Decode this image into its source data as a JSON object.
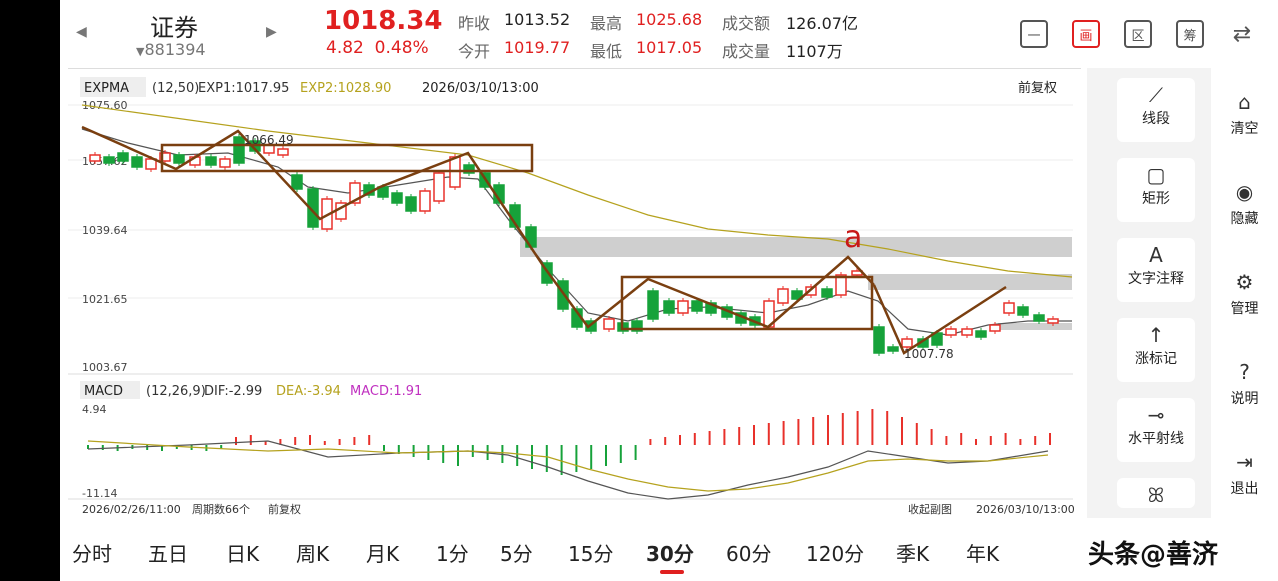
{
  "header": {
    "name": "证券",
    "code": "881394",
    "price": "1018.34",
    "change": "4.82",
    "change_pct": "0.48%",
    "quotes": [
      {
        "label": "昨收",
        "value": "1013.52",
        "red": false
      },
      {
        "label": "最高",
        "value": "1025.68",
        "red": true
      },
      {
        "label": "成交额",
        "value": "126.07亿",
        "red": false
      },
      {
        "label": "今开",
        "value": "1019.77",
        "red": true
      },
      {
        "label": "最低",
        "value": "1017.05",
        "red": true
      },
      {
        "label": "成交量",
        "value": "1107万",
        "red": false
      }
    ],
    "toolbar": [
      "一",
      "画",
      "区",
      "筹"
    ]
  },
  "chart": {
    "indicator": "EXPMA",
    "params": "(12,50)",
    "exp1": "EXP1:1017.95",
    "exp2": "EXP2:1028.90",
    "datetime": "2026/03/10/13:00",
    "adjust": "前复权",
    "y_labels": [
      "1075.60",
      "1057.62",
      "1039.64",
      "1021.65",
      "1003.67"
    ],
    "high_mark": "1066.49",
    "low_mark": "1007.78",
    "annotation": "a",
    "macd_name": "MACD",
    "macd_params": "(12,26,9)",
    "dif": "DIF:-2.99",
    "dea": "DEA:-3.94",
    "macd": "MACD:1.91",
    "macd_top": "4.94",
    "macd_bottom": "-11.14",
    "start_date": "2026/02/26/11:00",
    "period_count": "周期数66个",
    "footer_adjust": "前复权",
    "collapse": "收起副图",
    "end_date": "2026/03/10/13:00",
    "colors": {
      "up": "#e8302a",
      "down": "#16a23a",
      "exp1": "#555555",
      "exp2": "#b5a21e",
      "drawing": "#7a3f10"
    }
  },
  "chart_data": {
    "type": "candlestick",
    "y_range": [
      1003.67,
      1075.6
    ],
    "macd_range": [
      -11.14,
      4.94
    ]
  },
  "tools": [
    {
      "icon": "line-segment-icon",
      "glyph": "⟋",
      "label": "线段"
    },
    {
      "icon": "rectangle-icon",
      "glyph": "▢",
      "label": "矩形"
    },
    {
      "icon": "text-icon",
      "glyph": "A",
      "label": "文字注释"
    },
    {
      "icon": "arrow-up-icon",
      "glyph": "↑",
      "label": "涨标记"
    },
    {
      "icon": "horizontal-ray-icon",
      "glyph": "⊸",
      "label": "水平射线"
    }
  ],
  "side": [
    {
      "icon": "broom-icon",
      "glyph": "⌂",
      "label": "清空"
    },
    {
      "icon": "eye-icon",
      "glyph": "◉",
      "label": "隐藏"
    },
    {
      "icon": "gear-icon",
      "glyph": "⚙",
      "label": "管理"
    },
    {
      "icon": "help-icon",
      "glyph": "?",
      "label": "说明"
    },
    {
      "icon": "exit-icon",
      "glyph": "⇥",
      "label": "退出"
    }
  ],
  "periods": [
    "分时",
    "五日",
    "日K",
    "周K",
    "月K",
    "1分",
    "5分",
    "15分",
    "30分",
    "60分",
    "120分",
    "季K",
    "年K"
  ],
  "watermark": "头条@善济"
}
